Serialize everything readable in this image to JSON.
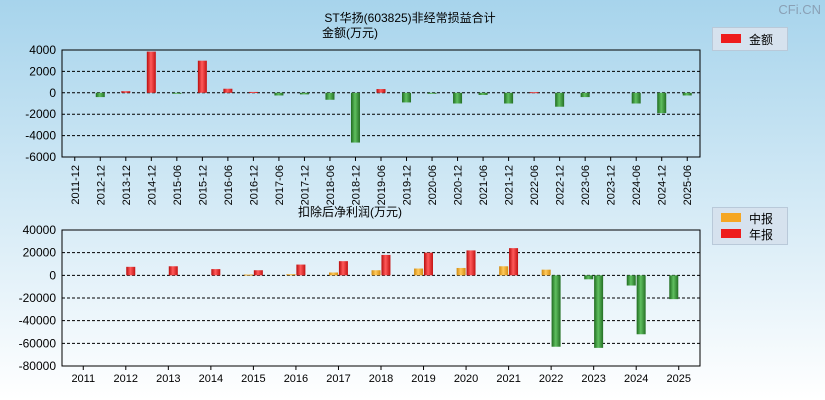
{
  "watermark": "CFi.CN",
  "colors": {
    "red": "#ee1c1c",
    "green": "#2e8b2e",
    "orange": "#f5a623",
    "bg_top": "#a9d6ee",
    "bg_bottom": "#ffffff"
  },
  "chart_data": [
    {
      "type": "bar",
      "title": "ST华扬(603825)非经常损益合计",
      "ylabel": "金额(万元)",
      "ylim": [
        -6000,
        4000
      ],
      "yticks": [
        4000,
        2000,
        0,
        -2000,
        -4000,
        -6000
      ],
      "ytick_labels": [
        "4000",
        "2000",
        "0",
        "-2000",
        "-4000",
        "-6000"
      ],
      "grid": true,
      "legend_position": "top-right",
      "categories": [
        "2011-12",
        "2012-12",
        "2013-12",
        "2014-12",
        "2015-06",
        "2015-12",
        "2016-06",
        "2016-12",
        "2017-06",
        "2017-12",
        "2018-06",
        "2018-12",
        "2019-06",
        "2019-12",
        "2020-06",
        "2020-12",
        "2021-06",
        "2021-12",
        "2022-06",
        "2022-12",
        "2023-06",
        "2023-12",
        "2024-06",
        "2024-12",
        "2025-06"
      ],
      "series": [
        {
          "name": "金额",
          "values": [
            0,
            -400,
            150,
            3850,
            -80,
            3000,
            380,
            80,
            -250,
            -150,
            -650,
            -4650,
            350,
            -900,
            -60,
            -1000,
            -200,
            -1000,
            60,
            -1300,
            -400,
            0,
            -1000,
            -1900,
            -250
          ]
        }
      ]
    },
    {
      "type": "bar",
      "title": "扣除后净利润(万元)",
      "ylim": [
        -80000,
        40000
      ],
      "yticks": [
        40000,
        20000,
        0,
        -20000,
        -40000,
        -60000,
        -80000
      ],
      "ytick_labels": [
        "40000",
        "20000",
        "0",
        "-20000",
        "-40000",
        "-60000",
        "-80000"
      ],
      "grid": true,
      "legend_position": "top-right",
      "categories": [
        "2011",
        "2012",
        "2013",
        "2014",
        "2015",
        "2016",
        "2017",
        "2018",
        "2019",
        "2020",
        "2021",
        "2022",
        "2023",
        "2024",
        "2025"
      ],
      "series": [
        {
          "name": "中报",
          "values": [
            null,
            null,
            null,
            null,
            700,
            1000,
            2500,
            4500,
            6000,
            6500,
            8000,
            5000,
            -3500,
            -9000,
            -21000
          ]
        },
        {
          "name": "年报",
          "values": [
            null,
            7500,
            8000,
            5500,
            4500,
            9500,
            12500,
            18000,
            20000,
            22000,
            24000,
            -63000,
            -64000,
            -52000,
            null
          ]
        }
      ]
    }
  ]
}
